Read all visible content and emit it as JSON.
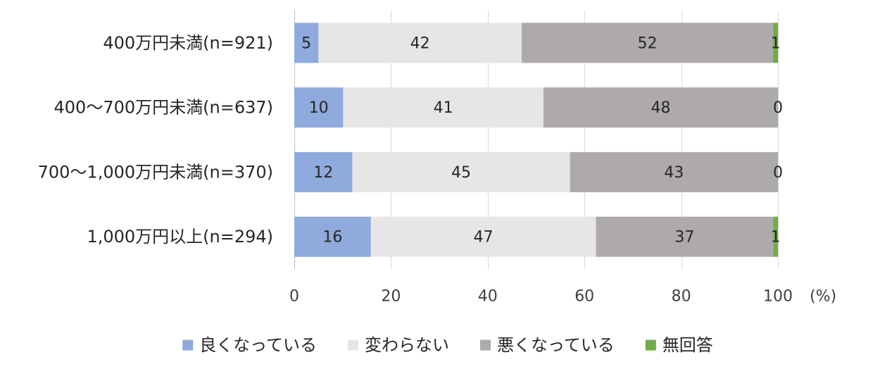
{
  "chart_data": {
    "type": "bar",
    "orientation": "horizontal",
    "stacked": true,
    "categories": [
      "400万円未満(n=921)",
      "400～700万円未満(n=637)",
      "700～1,000万円未満(n=370)",
      "1,000万円以上(n=294)"
    ],
    "series": [
      {
        "name": "良くなっている",
        "values": [
          5,
          10,
          12,
          16
        ],
        "color": "#8FAADC"
      },
      {
        "name": "変わらない",
        "values": [
          42,
          41,
          45,
          47
        ],
        "color": "#E7E6E6"
      },
      {
        "name": "悪くなっている",
        "values": [
          52,
          48,
          43,
          37
        ],
        "color": "#AEAAAA"
      },
      {
        "name": "無回答",
        "values": [
          1,
          0,
          0,
          1
        ],
        "color": "#70AD47"
      }
    ],
    "xlim": [
      0,
      100
    ],
    "xticks": [
      0,
      20,
      40,
      60,
      80,
      100
    ],
    "xlabel": "(%)",
    "grid": true,
    "legend": "bottom"
  }
}
